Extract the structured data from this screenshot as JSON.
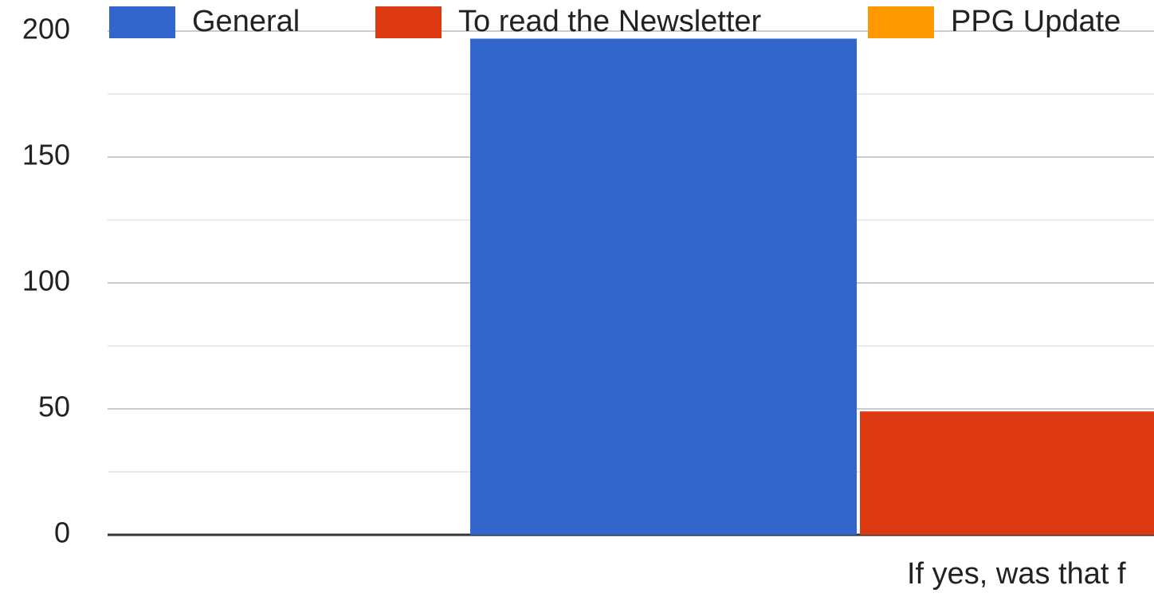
{
  "chart_data": {
    "type": "bar",
    "categories": [
      "If yes, was that f"
    ],
    "series": [
      {
        "name": "General",
        "color": "#3366cc",
        "values": [
          197
        ]
      },
      {
        "name": "To read the Newsletter",
        "color": "#dc3912",
        "values": [
          49
        ]
      },
      {
        "name": "PPG Update",
        "color": "#ff9900",
        "values": [
          null
        ]
      }
    ],
    "ylim": [
      0,
      200
    ],
    "yticks": [
      0,
      50,
      100,
      150,
      200
    ],
    "minor_yticks": [
      25,
      75,
      125,
      175
    ],
    "grid": true
  }
}
